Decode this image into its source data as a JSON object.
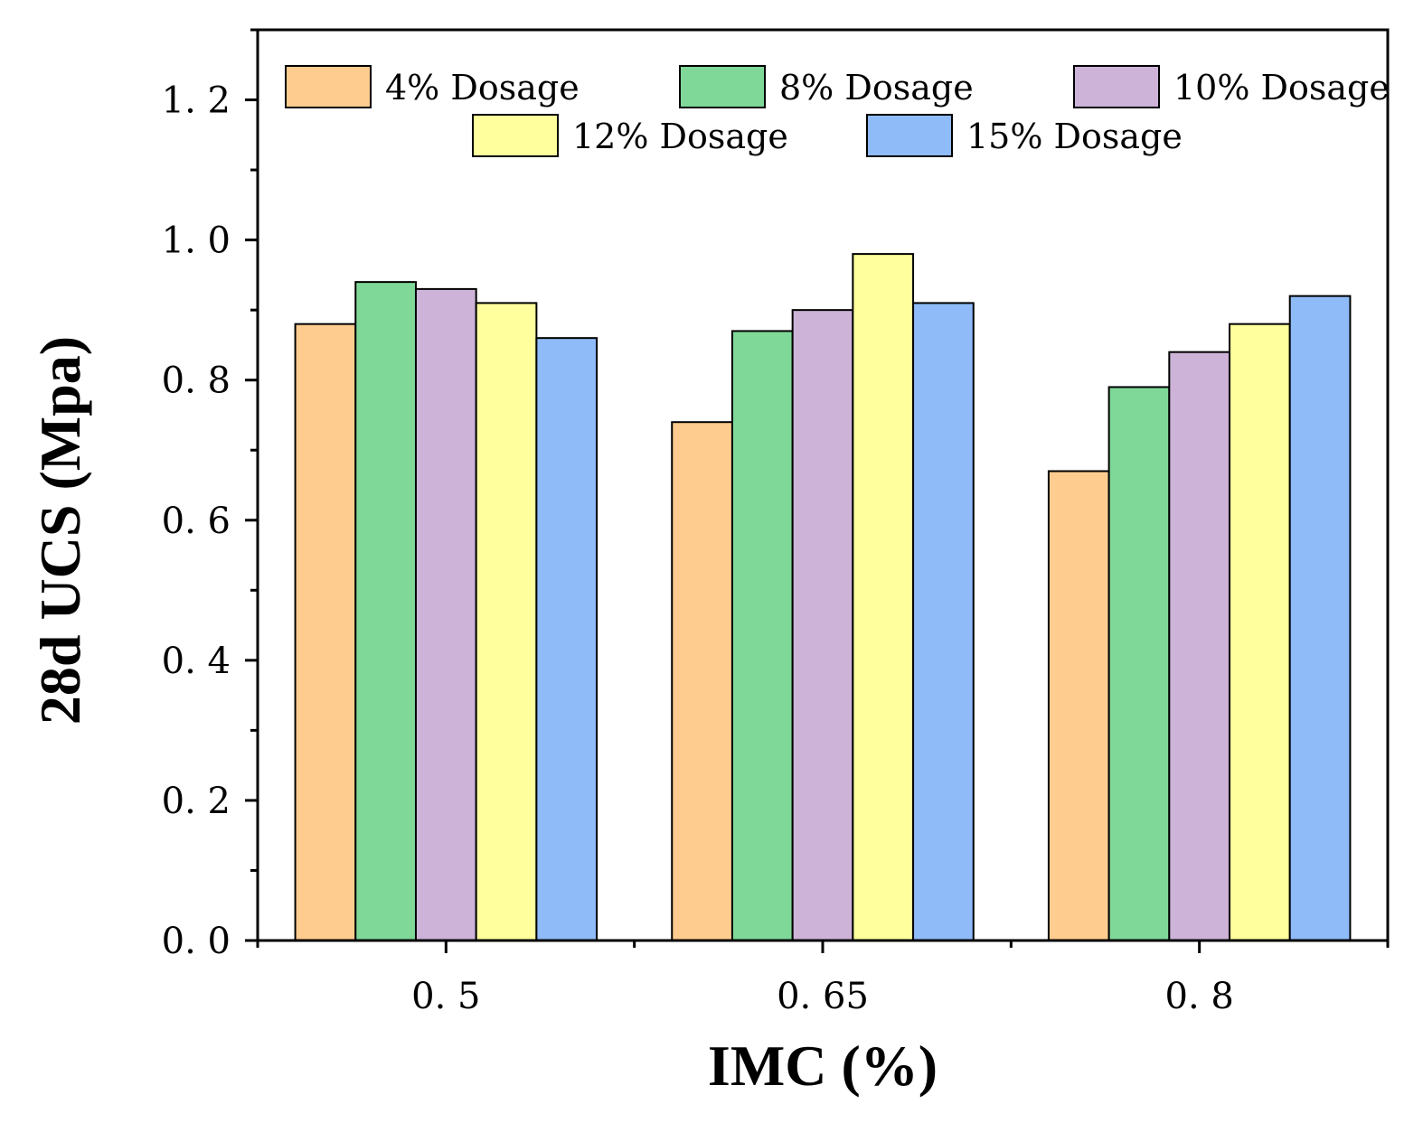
{
  "chart_data": {
    "type": "bar",
    "xlabel": "IMC (%)",
    "ylabel": "28d UCS (Mpa)",
    "categories": [
      "0. 5",
      "0. 65",
      "0. 8"
    ],
    "ylim": [
      0,
      1.3
    ],
    "yticks": [
      "0. 0",
      "0. 2",
      "0. 4",
      "0. 6",
      "0. 8",
      "1. 0",
      "1. 2"
    ],
    "ytick_values": [
      0,
      0.2,
      0.4,
      0.6,
      0.8,
      1.0,
      1.2
    ],
    "grid": false,
    "legend_position": "top",
    "series": [
      {
        "name": "4% Dosage",
        "color": "#FFCC8F",
        "values": [
          0.88,
          0.74,
          0.67
        ]
      },
      {
        "name": "8% Dosage",
        "color": "#7FD898",
        "values": [
          0.94,
          0.87,
          0.79
        ]
      },
      {
        "name": "10% Dosage",
        "color": "#CDB3D8",
        "values": [
          0.93,
          0.9,
          0.84
        ]
      },
      {
        "name": "12% Dosage",
        "color": "#FFFF9D",
        "values": [
          0.91,
          0.98,
          0.88
        ]
      },
      {
        "name": "15% Dosage",
        "color": "#8FBBF9",
        "values": [
          0.86,
          0.91,
          0.92
        ]
      }
    ]
  }
}
